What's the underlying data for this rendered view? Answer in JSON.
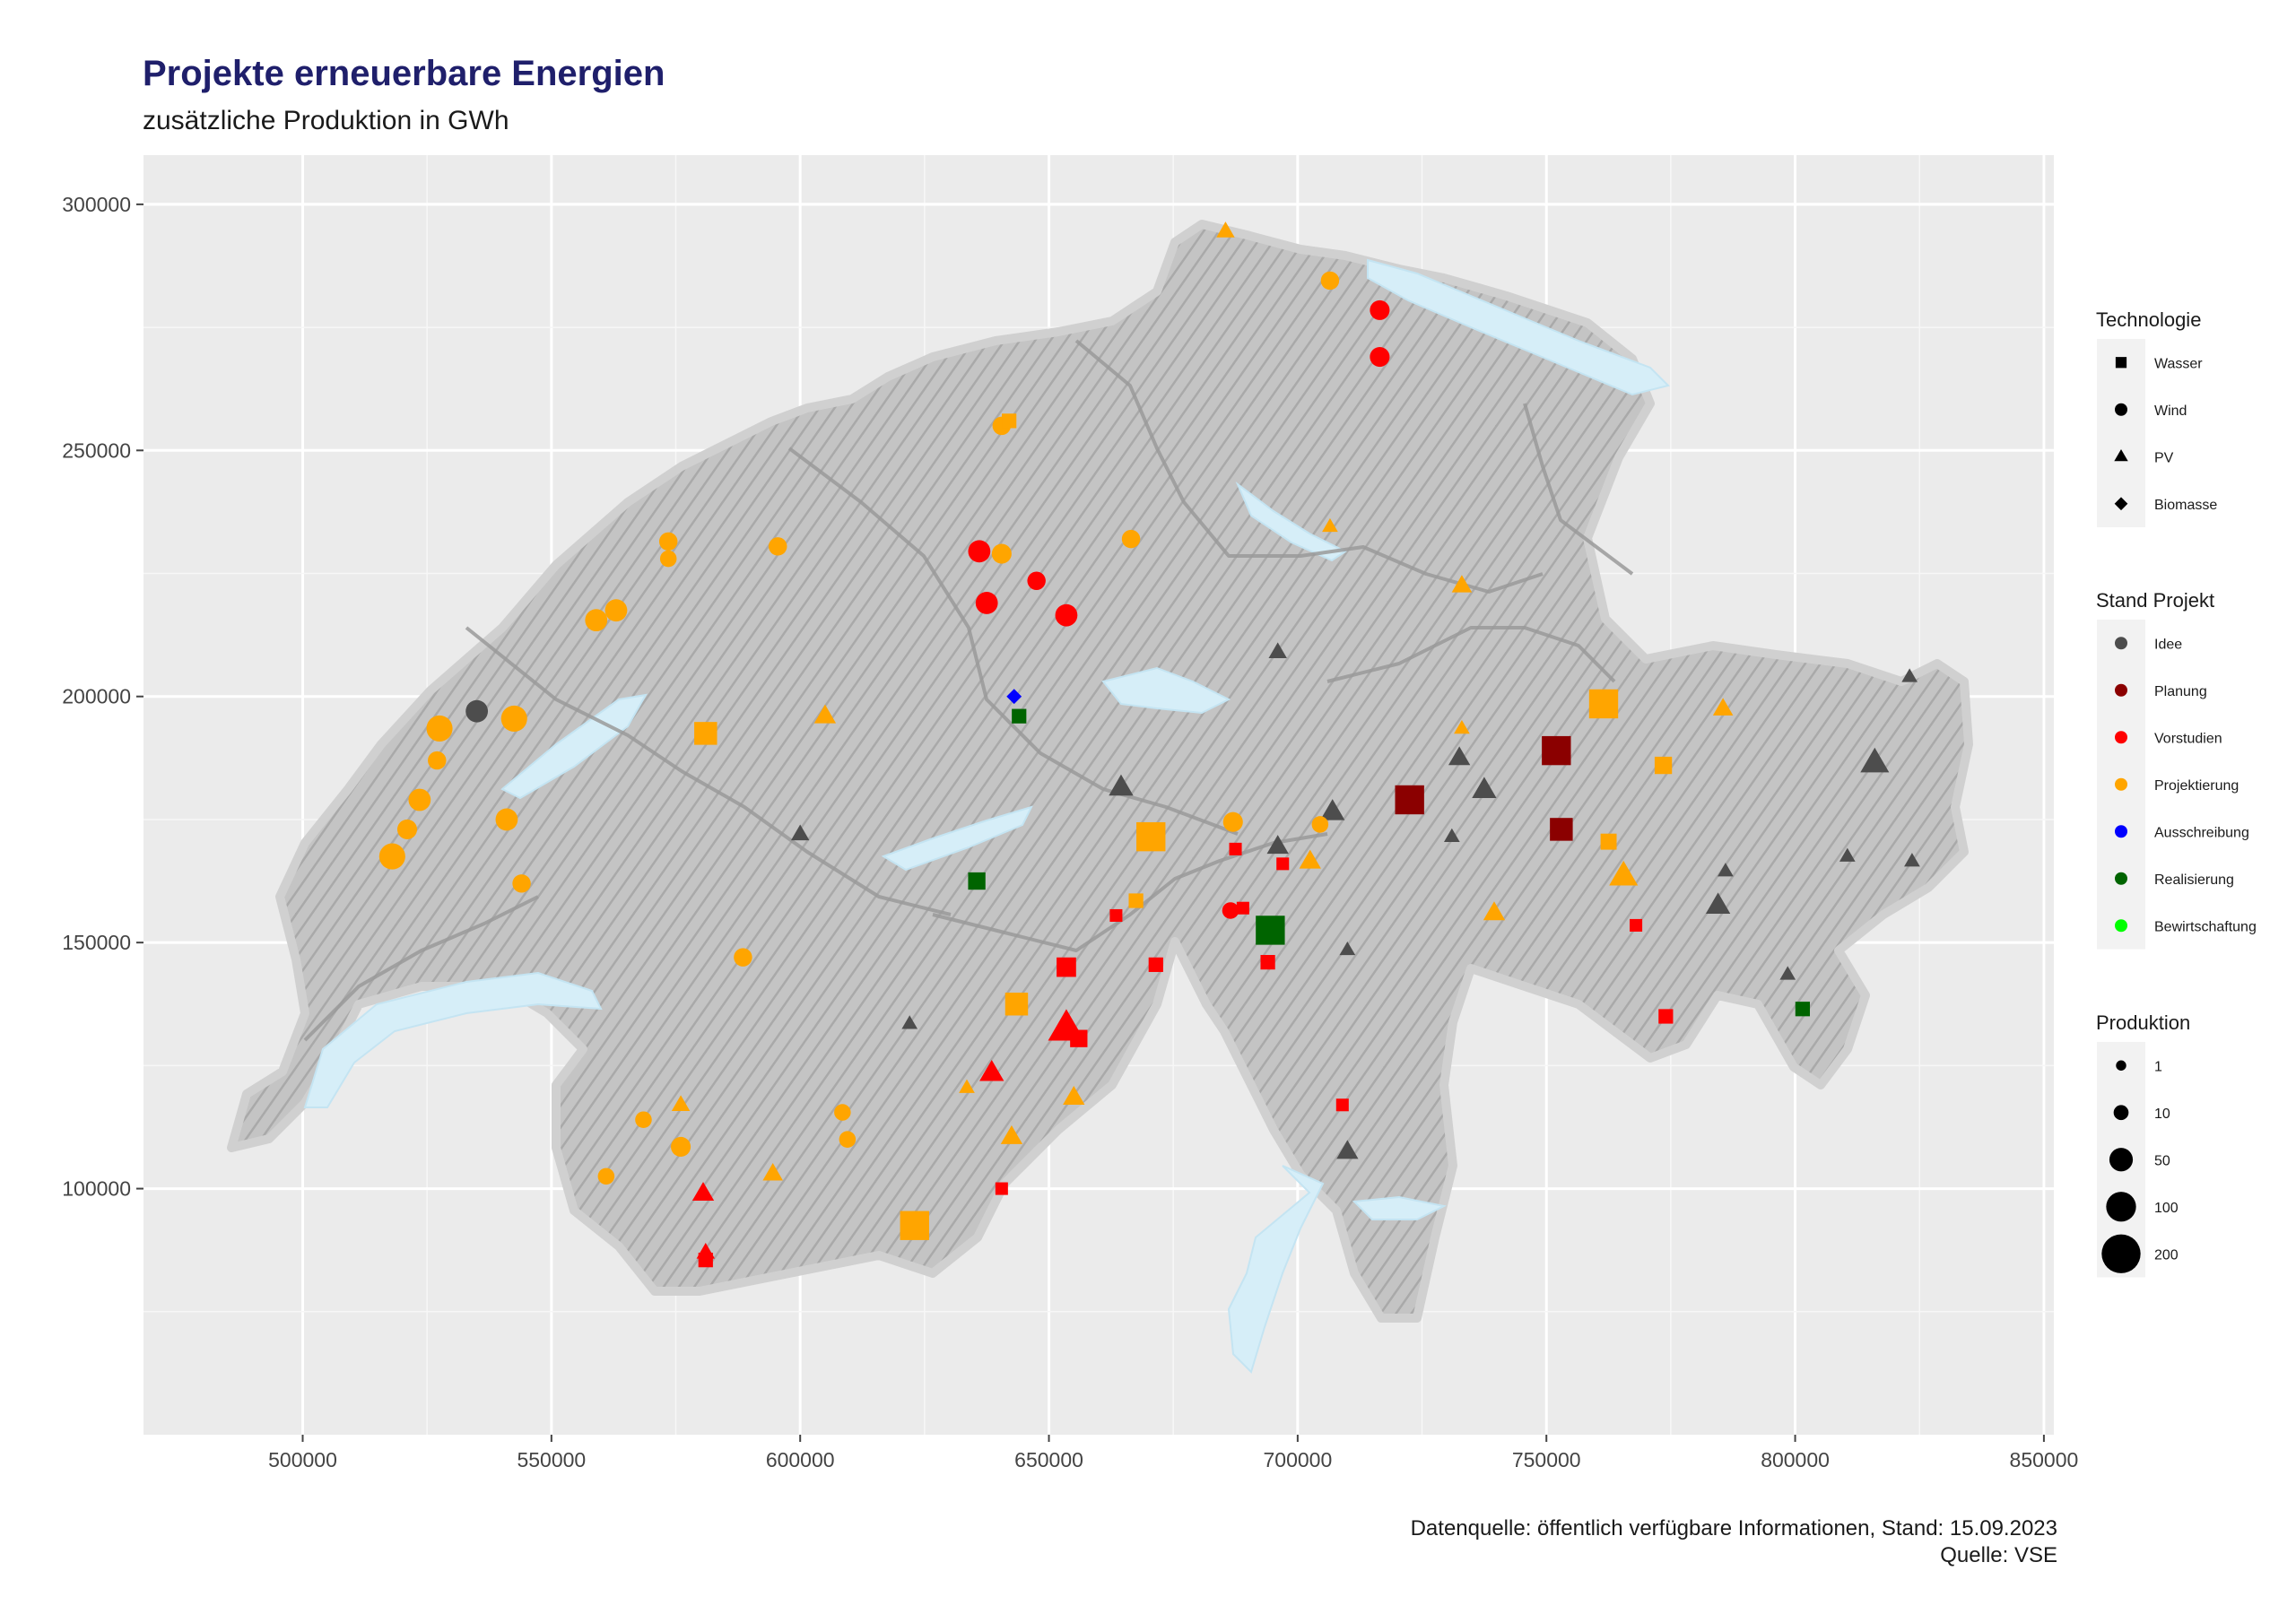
{
  "header": {
    "title": "Projekte erneuerbare Energien",
    "subtitle": "zusätzliche Produktion in GWh"
  },
  "footer": {
    "source_line1": "Datenquelle: öffentlich verfügbare Informationen, Stand: 15.09.2023",
    "source_line2": "Quelle: VSE"
  },
  "colors": {
    "panel": "#ebebeb",
    "grid": "#ffffff",
    "relief": "#bdbdbd",
    "lake": "#d6eef8",
    "border": "#9a9a9a"
  },
  "chart_data": {
    "type": "scatter",
    "xlim": [
      468000,
      852000
    ],
    "ylim": [
      50000,
      310000
    ],
    "x_ticks": [
      500000,
      550000,
      600000,
      650000,
      700000,
      750000,
      800000,
      850000
    ],
    "y_ticks": [
      100000,
      150000,
      200000,
      250000,
      300000
    ],
    "x_tick_labels": [
      "500000",
      "550000",
      "600000",
      "650000",
      "700000",
      "750000",
      "800000",
      "850000"
    ],
    "y_tick_labels": [
      "100000",
      "150000",
      "200000",
      "250000",
      "300000"
    ],
    "grid": true,
    "legend_position": "right",
    "legends": {
      "technology": {
        "title": "Technologie",
        "items": [
          {
            "label": "Wasser",
            "shape": "square"
          },
          {
            "label": "Wind",
            "shape": "circle"
          },
          {
            "label": "PV",
            "shape": "triangle"
          },
          {
            "label": "Biomasse",
            "shape": "diamond"
          }
        ]
      },
      "status": {
        "title": "Stand Projekt",
        "items": [
          {
            "label": "Idee",
            "color": "#4d4d4d"
          },
          {
            "label": "Planung",
            "color": "#8b0000"
          },
          {
            "label": "Vorstudien",
            "color": "#ff0000"
          },
          {
            "label": "Projektierung",
            "color": "#ffa500"
          },
          {
            "label": "Ausschreibung",
            "color": "#0000ff"
          },
          {
            "label": "Realisierung",
            "color": "#006400"
          },
          {
            "label": "Bewirtschaftung",
            "color": "#00ff00"
          }
        ]
      },
      "production": {
        "title": "Produktion",
        "items": [
          {
            "label": "1",
            "value": 1
          },
          {
            "label": "10",
            "value": 10
          },
          {
            "label": "50",
            "value": 50
          },
          {
            "label": "100",
            "value": 100
          },
          {
            "label": "200",
            "value": 200
          }
        ]
      }
    },
    "points": [
      {
        "x": 535000,
        "y": 197000,
        "tech": "Wind",
        "status": "Idee",
        "prod": 30
      },
      {
        "x": 527500,
        "y": 193500,
        "tech": "Wind",
        "status": "Projektierung",
        "prod": 50
      },
      {
        "x": 542500,
        "y": 195500,
        "tech": "Wind",
        "status": "Projektierung",
        "prod": 50
      },
      {
        "x": 527000,
        "y": 187000,
        "tech": "Wind",
        "status": "Projektierung",
        "prod": 15
      },
      {
        "x": 523500,
        "y": 179000,
        "tech": "Wind",
        "status": "Projektierung",
        "prod": 30
      },
      {
        "x": 521000,
        "y": 173000,
        "tech": "Wind",
        "status": "Projektierung",
        "prod": 20
      },
      {
        "x": 518000,
        "y": 167500,
        "tech": "Wind",
        "status": "Projektierung",
        "prod": 50
      },
      {
        "x": 541000,
        "y": 175000,
        "tech": "Wind",
        "status": "Projektierung",
        "prod": 30
      },
      {
        "x": 544000,
        "y": 162000,
        "tech": "Wind",
        "status": "Projektierung",
        "prod": 15
      },
      {
        "x": 559000,
        "y": 215500,
        "tech": "Wind",
        "status": "Projektierung",
        "prod": 30
      },
      {
        "x": 563000,
        "y": 217500,
        "tech": "Wind",
        "status": "Projektierung",
        "prod": 30
      },
      {
        "x": 573500,
        "y": 231500,
        "tech": "Wind",
        "status": "Projektierung",
        "prod": 15
      },
      {
        "x": 573500,
        "y": 228000,
        "tech": "Wind",
        "status": "Projektierung",
        "prod": 10
      },
      {
        "x": 595500,
        "y": 230500,
        "tech": "Wind",
        "status": "Projektierung",
        "prod": 15
      },
      {
        "x": 640500,
        "y": 255000,
        "tech": "Wind",
        "status": "Projektierung",
        "prod": 15
      },
      {
        "x": 636000,
        "y": 229500,
        "tech": "Wind",
        "status": "Vorstudien",
        "prod": 30
      },
      {
        "x": 640500,
        "y": 229000,
        "tech": "Wind",
        "status": "Projektierung",
        "prod": 20
      },
      {
        "x": 637500,
        "y": 219000,
        "tech": "Wind",
        "status": "Vorstudien",
        "prod": 30
      },
      {
        "x": 647500,
        "y": 223500,
        "tech": "Wind",
        "status": "Vorstudien",
        "prod": 15
      },
      {
        "x": 653500,
        "y": 216500,
        "tech": "Wind",
        "status": "Vorstudien",
        "prod": 30
      },
      {
        "x": 666500,
        "y": 232000,
        "tech": "Wind",
        "status": "Projektierung",
        "prod": 15
      },
      {
        "x": 706500,
        "y": 284500,
        "tech": "Wind",
        "status": "Projektierung",
        "prod": 15
      },
      {
        "x": 716500,
        "y": 278500,
        "tech": "Wind",
        "status": "Vorstudien",
        "prod": 20
      },
      {
        "x": 716500,
        "y": 269000,
        "tech": "Wind",
        "status": "Vorstudien",
        "prod": 20
      },
      {
        "x": 588500,
        "y": 147000,
        "tech": "Wind",
        "status": "Projektierung",
        "prod": 15
      },
      {
        "x": 568500,
        "y": 114000,
        "tech": "Wind",
        "status": "Projektierung",
        "prod": 10
      },
      {
        "x": 576000,
        "y": 108500,
        "tech": "Wind",
        "status": "Projektierung",
        "prod": 20
      },
      {
        "x": 608500,
        "y": 115500,
        "tech": "Wind",
        "status": "Projektierung",
        "prod": 10
      },
      {
        "x": 609500,
        "y": 110000,
        "tech": "Wind",
        "status": "Projektierung",
        "prod": 10
      },
      {
        "x": 561000,
        "y": 102500,
        "tech": "Wind",
        "status": "Projektierung",
        "prod": 10
      },
      {
        "x": 687000,
        "y": 174500,
        "tech": "Wind",
        "status": "Projektierung",
        "prod": 20
      },
      {
        "x": 704500,
        "y": 174000,
        "tech": "Wind",
        "status": "Projektierung",
        "prod": 10
      },
      {
        "x": 686500,
        "y": 156500,
        "tech": "Wind",
        "status": "Vorstudien",
        "prod": 10
      },
      {
        "x": 581000,
        "y": 192500,
        "tech": "Wasser",
        "status": "Projektierung",
        "prod": 50
      },
      {
        "x": 670500,
        "y": 171500,
        "tech": "Wasser",
        "status": "Projektierung",
        "prod": 100
      },
      {
        "x": 643500,
        "y": 137500,
        "tech": "Wasser",
        "status": "Projektierung",
        "prod": 50
      },
      {
        "x": 623000,
        "y": 92500,
        "tech": "Wasser",
        "status": "Projektierung",
        "prod": 100
      },
      {
        "x": 761500,
        "y": 198500,
        "tech": "Wasser",
        "status": "Projektierung",
        "prod": 100
      },
      {
        "x": 773500,
        "y": 186000,
        "tech": "Wasser",
        "status": "Projektierung",
        "prod": 20
      },
      {
        "x": 762500,
        "y": 170500,
        "tech": "Wasser",
        "status": "Projektierung",
        "prod": 15
      },
      {
        "x": 642000,
        "y": 256000,
        "tech": "Wasser",
        "status": "Projektierung",
        "prod": 10
      },
      {
        "x": 667500,
        "y": 158500,
        "tech": "Wasser",
        "status": "Projektierung",
        "prod": 10
      },
      {
        "x": 722500,
        "y": 179000,
        "tech": "Wasser",
        "status": "Planung",
        "prod": 100
      },
      {
        "x": 752000,
        "y": 189000,
        "tech": "Wasser",
        "status": "Planung",
        "prod": 100
      },
      {
        "x": 753000,
        "y": 173000,
        "tech": "Wasser",
        "status": "Planung",
        "prod": 50
      },
      {
        "x": 694500,
        "y": 152500,
        "tech": "Wasser",
        "status": "Realisierung",
        "prod": 100
      },
      {
        "x": 635500,
        "y": 162500,
        "tech": "Wasser",
        "status": "Realisierung",
        "prod": 20
      },
      {
        "x": 644000,
        "y": 196000,
        "tech": "Wasser",
        "status": "Realisierung",
        "prod": 10
      },
      {
        "x": 801500,
        "y": 136500,
        "tech": "Wasser",
        "status": "Realisierung",
        "prod": 10
      },
      {
        "x": 653500,
        "y": 145000,
        "tech": "Wasser",
        "status": "Vorstudien",
        "prod": 30
      },
      {
        "x": 656000,
        "y": 130500,
        "tech": "Wasser",
        "status": "Vorstudien",
        "prod": 20
      },
      {
        "x": 671500,
        "y": 145500,
        "tech": "Wasser",
        "status": "Vorstudien",
        "prod": 10
      },
      {
        "x": 687500,
        "y": 169000,
        "tech": "Wasser",
        "status": "Vorstudien",
        "prod": 5
      },
      {
        "x": 697000,
        "y": 166000,
        "tech": "Wasser",
        "status": "Vorstudien",
        "prod": 5
      },
      {
        "x": 694000,
        "y": 146000,
        "tech": "Wasser",
        "status": "Vorstudien",
        "prod": 10
      },
      {
        "x": 689000,
        "y": 157000,
        "tech": "Wasser",
        "status": "Vorstudien",
        "prod": 5
      },
      {
        "x": 663500,
        "y": 155500,
        "tech": "Wasser",
        "status": "Vorstudien",
        "prod": 5
      },
      {
        "x": 709000,
        "y": 117000,
        "tech": "Wasser",
        "status": "Vorstudien",
        "prod": 5
      },
      {
        "x": 768000,
        "y": 153500,
        "tech": "Wasser",
        "status": "Vorstudien",
        "prod": 5
      },
      {
        "x": 774000,
        "y": 135000,
        "tech": "Wasser",
        "status": "Vorstudien",
        "prod": 10
      },
      {
        "x": 640500,
        "y": 100000,
        "tech": "Wasser",
        "status": "Vorstudien",
        "prod": 5
      },
      {
        "x": 581000,
        "y": 85500,
        "tech": "Wasser",
        "status": "Vorstudien",
        "prod": 10
      },
      {
        "x": 643000,
        "y": 200000,
        "tech": "Biomasse",
        "status": "Ausschreibung",
        "prod": 5
      },
      {
        "x": 600000,
        "y": 172000,
        "tech": "PV",
        "status": "Idee",
        "prod": 10
      },
      {
        "x": 664500,
        "y": 181500,
        "tech": "PV",
        "status": "Idee",
        "prod": 30
      },
      {
        "x": 696000,
        "y": 209000,
        "tech": "PV",
        "status": "Idee",
        "prod": 10
      },
      {
        "x": 707000,
        "y": 176500,
        "tech": "PV",
        "status": "Idee",
        "prod": 30
      },
      {
        "x": 696000,
        "y": 169500,
        "tech": "PV",
        "status": "Idee",
        "prod": 20
      },
      {
        "x": 732500,
        "y": 187500,
        "tech": "PV",
        "status": "Idee",
        "prod": 20
      },
      {
        "x": 737500,
        "y": 181000,
        "tech": "PV",
        "status": "Idee",
        "prod": 30
      },
      {
        "x": 731000,
        "y": 171500,
        "tech": "PV",
        "status": "Idee",
        "prod": 5
      },
      {
        "x": 784500,
        "y": 157500,
        "tech": "PV",
        "status": "Idee",
        "prod": 30
      },
      {
        "x": 786000,
        "y": 164500,
        "tech": "PV",
        "status": "Idee",
        "prod": 5
      },
      {
        "x": 798500,
        "y": 143500,
        "tech": "PV",
        "status": "Idee",
        "prod": 5
      },
      {
        "x": 810500,
        "y": 167500,
        "tech": "PV",
        "status": "Idee",
        "prod": 5
      },
      {
        "x": 816000,
        "y": 186500,
        "tech": "PV",
        "status": "Idee",
        "prod": 50
      },
      {
        "x": 823500,
        "y": 166500,
        "tech": "PV",
        "status": "Idee",
        "prod": 5
      },
      {
        "x": 823000,
        "y": 204000,
        "tech": "PV",
        "status": "Idee",
        "prod": 5
      },
      {
        "x": 710000,
        "y": 148500,
        "tech": "PV",
        "status": "Idee",
        "prod": 5
      },
      {
        "x": 710000,
        "y": 107500,
        "tech": "PV",
        "status": "Idee",
        "prod": 20
      },
      {
        "x": 622000,
        "y": 133500,
        "tech": "PV",
        "status": "Idee",
        "prod": 5
      },
      {
        "x": 685500,
        "y": 294500,
        "tech": "PV",
        "status": "Projektierung",
        "prod": 10
      },
      {
        "x": 706500,
        "y": 234500,
        "tech": "PV",
        "status": "Projektierung",
        "prod": 5
      },
      {
        "x": 733000,
        "y": 222500,
        "tech": "PV",
        "status": "Projektierung",
        "prod": 15
      },
      {
        "x": 605000,
        "y": 196000,
        "tech": "PV",
        "status": "Projektierung",
        "prod": 20
      },
      {
        "x": 733000,
        "y": 193500,
        "tech": "PV",
        "status": "Projektierung",
        "prod": 5
      },
      {
        "x": 702500,
        "y": 166500,
        "tech": "PV",
        "status": "Projektierung",
        "prod": 20
      },
      {
        "x": 739500,
        "y": 156000,
        "tech": "PV",
        "status": "Projektierung",
        "prod": 20
      },
      {
        "x": 765500,
        "y": 163500,
        "tech": "PV",
        "status": "Projektierung",
        "prod": 50
      },
      {
        "x": 785500,
        "y": 197500,
        "tech": "PV",
        "status": "Projektierung",
        "prod": 15
      },
      {
        "x": 655000,
        "y": 118500,
        "tech": "PV",
        "status": "Projektierung",
        "prod": 20
      },
      {
        "x": 642500,
        "y": 110500,
        "tech": "PV",
        "status": "Projektierung",
        "prod": 20
      },
      {
        "x": 576000,
        "y": 117000,
        "tech": "PV",
        "status": "Projektierung",
        "prod": 10
      },
      {
        "x": 594500,
        "y": 103000,
        "tech": "PV",
        "status": "Projektierung",
        "prod": 15
      },
      {
        "x": 633500,
        "y": 120500,
        "tech": "PV",
        "status": "Projektierung",
        "prod": 5
      },
      {
        "x": 653500,
        "y": 132500,
        "tech": "PV",
        "status": "Vorstudien",
        "prod": 100
      },
      {
        "x": 638500,
        "y": 123500,
        "tech": "PV",
        "status": "Vorstudien",
        "prod": 30
      },
      {
        "x": 580500,
        "y": 99000,
        "tech": "PV",
        "status": "Vorstudien",
        "prod": 20
      },
      {
        "x": 581000,
        "y": 87000,
        "tech": "PV",
        "status": "Vorstudien",
        "prod": 10
      }
    ]
  }
}
